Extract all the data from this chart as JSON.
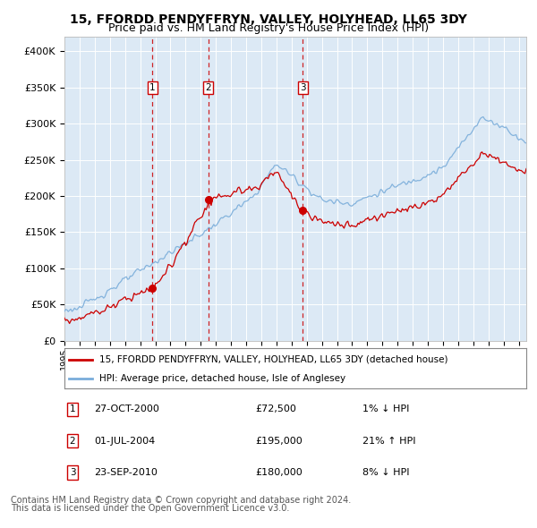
{
  "title": "15, FFORDD PENDYFFRYN, VALLEY, HOLYHEAD, LL65 3DY",
  "subtitle": "Price paid vs. HM Land Registry's House Price Index (HPI)",
  "title_fontsize": 10,
  "subtitle_fontsize": 9,
  "background_color": "#ffffff",
  "plot_bg_color": "#dce9f5",
  "grid_color": "#ffffff",
  "ylim": [
    0,
    420000
  ],
  "yticks": [
    0,
    50000,
    100000,
    150000,
    200000,
    250000,
    300000,
    350000,
    400000
  ],
  "ytick_labels": [
    "£0",
    "£50K",
    "£100K",
    "£150K",
    "£200K",
    "£250K",
    "£300K",
    "£350K",
    "£400K"
  ],
  "legend_line1_label": "15, FFORDD PENDYFFRYN, VALLEY, HOLYHEAD, LL65 3DY (detached house)",
  "legend_line2_label": "HPI: Average price, detached house, Isle of Anglesey",
  "line1_color": "#cc0000",
  "line2_color": "#7aadda",
  "transaction_marker_color": "#cc0000",
  "dashed_line_color": "#cc0000",
  "sale_box_color": "#cc0000",
  "transactions": [
    {
      "label": "1",
      "date_str": "27-OCT-2000",
      "price": 72500,
      "pct": "1%",
      "direction": "↓",
      "x_year": 2000.82
    },
    {
      "label": "2",
      "date_str": "01-JUL-2004",
      "price": 195000,
      "pct": "21%",
      "direction": "↑",
      "x_year": 2004.5
    },
    {
      "label": "3",
      "date_str": "23-SEP-2010",
      "price": 180000,
      "pct": "8%",
      "direction": "↓",
      "x_year": 2010.73
    }
  ],
  "footnote1": "Contains HM Land Registry data © Crown copyright and database right 2024.",
  "footnote2": "This data is licensed under the Open Government Licence v3.0.",
  "footnote_fontsize": 7,
  "xmin": 1995.0,
  "xmax": 2025.5
}
